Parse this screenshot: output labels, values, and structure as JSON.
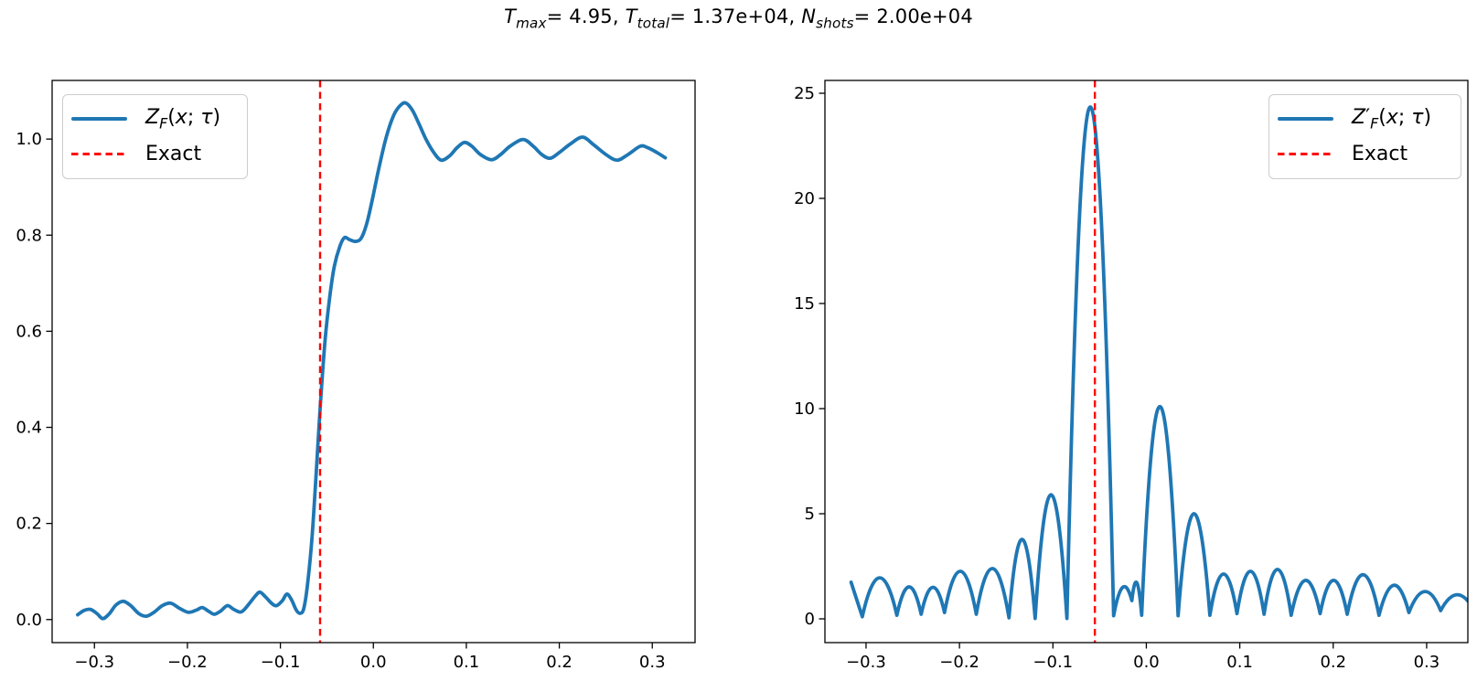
{
  "figure": {
    "title_segments": [
      {
        "t": "T",
        "i": 1
      },
      {
        "t": "max",
        "i": 1,
        "sub": 1
      },
      {
        "t": "= 4.95, "
      },
      {
        "t": "T",
        "i": 1
      },
      {
        "t": "total",
        "i": 1,
        "sub": 1
      },
      {
        "t": "= 1.37e+04, "
      },
      {
        "t": "N",
        "i": 1
      },
      {
        "t": "shots",
        "i": 1,
        "sub": 1
      },
      {
        "t": "= 2.00e+04"
      }
    ],
    "colors": {
      "series": "#1f77b4",
      "exact": "#ff0000",
      "spine": "#000000",
      "text": "#000000",
      "legend_border": "#cccccc"
    }
  },
  "chart_data": {
    "type": "line",
    "title": "T_max= 4.95, T_total= 1.37e+04, N_shots= 2.00e+04",
    "grid": false,
    "plots": [
      {
        "name": "smoothed-cdf",
        "xlim": [
          -0.3455,
          0.346
        ],
        "ylim": [
          -0.048,
          1.122
        ],
        "xticks": [
          -0.3,
          -0.2,
          -0.1,
          0.0,
          0.1,
          0.2,
          0.3
        ],
        "xtick_labels": [
          "−0.3",
          "−0.2",
          "−0.1",
          "0.0",
          "0.1",
          "0.2",
          "0.3"
        ],
        "yticks": [
          0.0,
          0.2,
          0.4,
          0.6,
          0.8,
          1.0
        ],
        "ytick_labels": [
          "0.0",
          "0.2",
          "0.4",
          "0.6",
          "0.8",
          "1.0"
        ],
        "legend": {
          "loc": "upper-left",
          "entries": [
            {
              "segments": [
                {
                  "t": "Z",
                  "i": 1
                },
                {
                  "t": "F",
                  "i": 1,
                  "sub": 1
                },
                {
                  "t": "("
                },
                {
                  "t": "x",
                  "i": 1
                },
                {
                  "t": "; "
                },
                {
                  "t": "τ",
                  "i": 1
                },
                {
                  "t": ")"
                }
              ]
            },
            {
              "label": "Exact"
            }
          ]
        },
        "series": [
          {
            "name": "Z_F(x; tau)",
            "type": "line",
            "color": "#1f77b4",
            "width": 3.8,
            "points": [
              [
                -0.318,
                0.01
              ],
              [
                -0.311,
                0.019
              ],
              [
                -0.304,
                0.021
              ],
              [
                -0.297,
                0.012
              ],
              [
                -0.291,
                0.002
              ],
              [
                -0.284,
                0.012
              ],
              [
                -0.277,
                0.03
              ],
              [
                -0.269,
                0.038
              ],
              [
                -0.261,
                0.029
              ],
              [
                -0.252,
                0.012
              ],
              [
                -0.244,
                0.007
              ],
              [
                -0.236,
                0.015
              ],
              [
                -0.227,
                0.029
              ],
              [
                -0.218,
                0.034
              ],
              [
                -0.209,
                0.024
              ],
              [
                -0.199,
                0.015
              ],
              [
                -0.19,
                0.02
              ],
              [
                -0.184,
                0.025
              ],
              [
                -0.177,
                0.017
              ],
              [
                -0.171,
                0.011
              ],
              [
                -0.164,
                0.018
              ],
              [
                -0.157,
                0.029
              ],
              [
                -0.15,
                0.021
              ],
              [
                -0.142,
                0.016
              ],
              [
                -0.134,
                0.032
              ],
              [
                -0.127,
                0.049
              ],
              [
                -0.122,
                0.057
              ],
              [
                -0.116,
                0.047
              ],
              [
                -0.109,
                0.033
              ],
              [
                -0.104,
                0.029
              ],
              [
                -0.098,
                0.039
              ],
              [
                -0.093,
                0.053
              ],
              [
                -0.088,
                0.041
              ],
              [
                -0.083,
                0.02
              ],
              [
                -0.079,
                0.013
              ],
              [
                -0.075,
                0.022
              ],
              [
                -0.071,
                0.07
              ],
              [
                -0.066,
                0.17
              ],
              [
                -0.061,
                0.32
              ],
              [
                -0.057,
                0.447
              ],
              [
                -0.052,
                0.58
              ],
              [
                -0.047,
                0.67
              ],
              [
                -0.042,
                0.735
              ],
              [
                -0.036,
                0.777
              ],
              [
                -0.031,
                0.795
              ],
              [
                -0.026,
                0.791
              ],
              [
                -0.019,
                0.787
              ],
              [
                -0.013,
                0.794
              ],
              [
                -0.007,
                0.825
              ],
              [
                -0.001,
                0.875
              ],
              [
                0.006,
                0.94
              ],
              [
                0.014,
                1.005
              ],
              [
                0.022,
                1.05
              ],
              [
                0.029,
                1.07
              ],
              [
                0.035,
                1.075
              ],
              [
                0.042,
                1.06
              ],
              [
                0.049,
                1.032
              ],
              [
                0.057,
                0.998
              ],
              [
                0.065,
                0.972
              ],
              [
                0.073,
                0.956
              ],
              [
                0.082,
                0.965
              ],
              [
                0.09,
                0.982
              ],
              [
                0.098,
                0.993
              ],
              [
                0.106,
                0.985
              ],
              [
                0.115,
                0.968
              ],
              [
                0.127,
                0.957
              ],
              [
                0.137,
                0.968
              ],
              [
                0.147,
                0.985
              ],
              [
                0.161,
                0.999
              ],
              [
                0.172,
                0.985
              ],
              [
                0.181,
                0.968
              ],
              [
                0.19,
                0.96
              ],
              [
                0.2,
                0.972
              ],
              [
                0.212,
                0.99
              ],
              [
                0.225,
                1.004
              ],
              [
                0.237,
                0.988
              ],
              [
                0.25,
                0.968
              ],
              [
                0.262,
                0.956
              ],
              [
                0.274,
                0.968
              ],
              [
                0.287,
                0.985
              ],
              [
                0.295,
                0.982
              ],
              [
                0.305,
                0.972
              ],
              [
                0.314,
                0.961
              ]
            ]
          },
          {
            "name": "Exact",
            "type": "vline",
            "x": -0.0573,
            "color": "#ff0000",
            "width": 2.4,
            "dash": [
              7.5,
              5
            ]
          }
        ]
      },
      {
        "name": "kernel-derivative",
        "xlim": [
          -0.344,
          0.3441
        ],
        "ylim": [
          -1.13,
          25.61
        ],
        "xticks": [
          -0.3,
          -0.2,
          -0.1,
          0.0,
          0.1,
          0.2,
          0.3
        ],
        "xtick_labels": [
          "−0.3",
          "−0.2",
          "−0.1",
          "0.0",
          "0.1",
          "0.2",
          "0.3"
        ],
        "yticks": [
          0,
          5,
          10,
          15,
          20,
          25
        ],
        "ytick_labels": [
          "0",
          "5",
          "10",
          "15",
          "20",
          "25"
        ],
        "legend": {
          "loc": "upper-right",
          "entries": [
            {
              "segments": [
                {
                  "t": "Z",
                  "i": 1
                },
                {
                  "t": "′"
                },
                {
                  "t": "F",
                  "i": 1,
                  "sub": 1
                },
                {
                  "t": "("
                },
                {
                  "t": "x",
                  "i": 1
                },
                {
                  "t": "; "
                },
                {
                  "t": "τ",
                  "i": 1
                },
                {
                  "t": ")"
                }
              ]
            },
            {
              "label": "Exact"
            }
          ]
        },
        "series": [
          {
            "name": "Z'_F(x; tau)",
            "type": "arches",
            "color": "#1f77b4",
            "width": 3.8,
            "start": [
              -0.316,
              1.74
            ],
            "arches": [
              [
                -0.316,
                1.74,
                -0.304,
                0.1,
                null
              ],
              [
                -0.304,
                0.1,
                -0.267,
                0.17,
                1.95
              ],
              [
                -0.267,
                0.17,
                -0.241,
                0.22,
                1.52
              ],
              [
                -0.241,
                0.22,
                -0.216,
                0.3,
                1.5
              ],
              [
                -0.216,
                0.3,
                -0.182,
                0.22,
                2.26
              ],
              [
                -0.182,
                0.22,
                -0.147,
                0.05,
                2.39
              ],
              [
                -0.147,
                0.05,
                -0.119,
                0.02,
                3.78
              ],
              [
                -0.119,
                0.02,
                -0.085,
                0.02,
                5.9
              ],
              [
                -0.085,
                0.02,
                -0.035,
                0.15,
                24.35
              ],
              [
                -0.035,
                0.15,
                -0.0155,
                0.87,
                1.5
              ],
              [
                -0.0155,
                0.87,
                -0.005,
                0.17,
                1.72
              ],
              [
                -0.005,
                0.17,
                0.034,
                0.15,
                10.1
              ],
              [
                0.034,
                0.15,
                0.068,
                0.17,
                5.0
              ],
              [
                0.068,
                0.17,
                0.097,
                0.25,
                2.13
              ],
              [
                0.097,
                0.25,
                0.126,
                0.22,
                2.26
              ],
              [
                0.126,
                0.22,
                0.155,
                0.17,
                2.35
              ],
              [
                0.155,
                0.17,
                0.186,
                0.25,
                1.83
              ],
              [
                0.186,
                0.25,
                0.215,
                0.22,
                1.83
              ],
              [
                0.215,
                0.22,
                0.249,
                0.17,
                2.1
              ],
              [
                0.249,
                0.17,
                0.281,
                0.3,
                1.6
              ],
              [
                0.281,
                0.3,
                0.315,
                0.39,
                1.3
              ],
              [
                0.315,
                0.39,
                0.3441,
                0.85,
                1.12
              ]
            ]
          },
          {
            "name": "Exact",
            "type": "vline",
            "x": -0.0551,
            "color": "#ff0000",
            "width": 2.4,
            "dash": [
              7.5,
              5
            ]
          }
        ]
      }
    ]
  }
}
